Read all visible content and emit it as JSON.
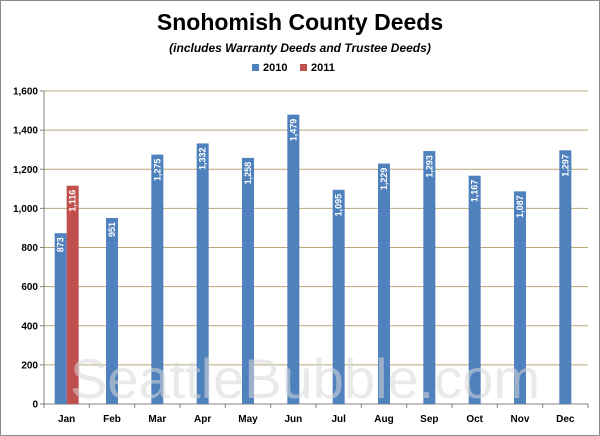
{
  "chart_data": {
    "type": "bar",
    "title": "Snohomish County Deeds",
    "subtitle": "(includes Warranty Deeds and Trustee Deeds)",
    "categories": [
      "Jan",
      "Feb",
      "Mar",
      "Apr",
      "May",
      "Jun",
      "Jul",
      "Aug",
      "Sep",
      "Oct",
      "Nov",
      "Dec"
    ],
    "series": [
      {
        "name": "2010",
        "color": "#4f81bd",
        "values": [
          873,
          951,
          1275,
          1332,
          1258,
          1479,
          1095,
          1229,
          1293,
          1167,
          1087,
          1297
        ],
        "labels": [
          "873",
          "951",
          "1,275",
          "1,332",
          "1,258",
          "1,479",
          "1,095",
          "1,229",
          "1,293",
          "1,167",
          "1,087",
          "1,297"
        ]
      },
      {
        "name": "2011",
        "color": "#c0504d",
        "values": [
          1116,
          null,
          null,
          null,
          null,
          null,
          null,
          null,
          null,
          null,
          null,
          null
        ],
        "labels": [
          "1,116",
          "",
          "",
          "",
          "",
          "",
          "",
          "",
          "",
          "",
          "",
          ""
        ]
      }
    ],
    "ylim": [
      0,
      1600
    ],
    "yticks": [
      0,
      200,
      400,
      600,
      800,
      1000,
      1200,
      1400,
      1600
    ],
    "ytick_labels": [
      "0",
      "200",
      "400",
      "600",
      "800",
      "1,000",
      "1,200",
      "1,400",
      "1,600"
    ],
    "grid": true,
    "grid_color": "#b8a878",
    "legend_position": "top-center",
    "watermark": "SeattleBubble.com"
  }
}
